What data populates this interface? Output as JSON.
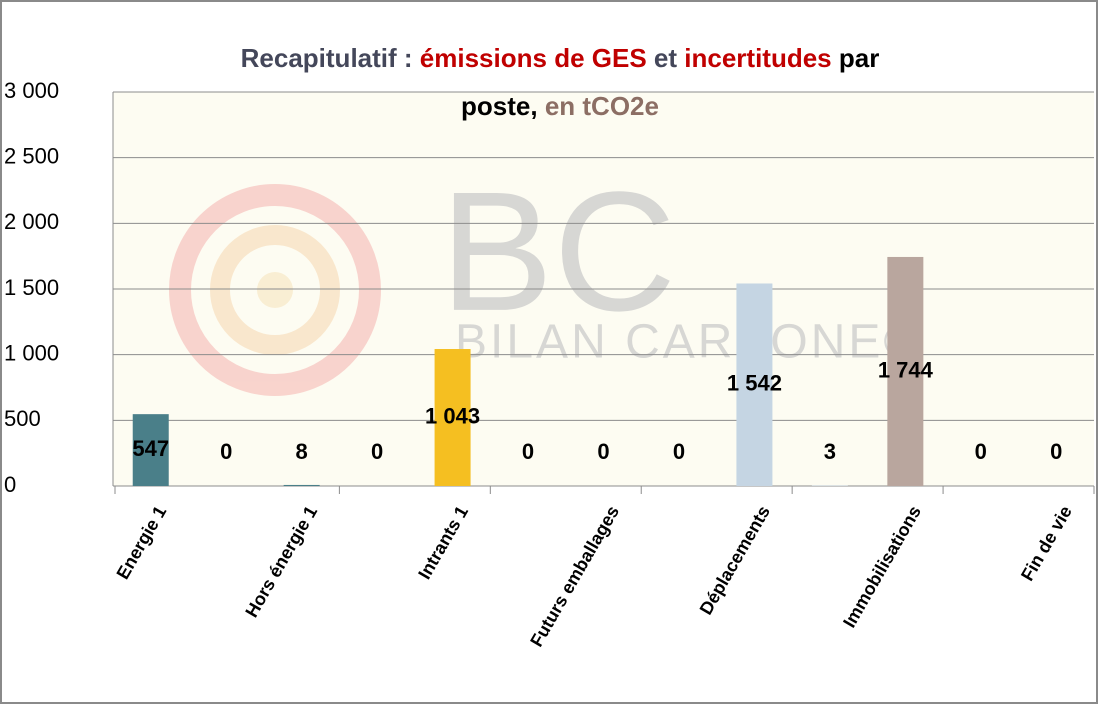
{
  "chart_data": {
    "type": "bar",
    "title": [
      {
        "text": "Recapitulatif :",
        "color": "#44475a"
      },
      {
        "text": "émissions de GES",
        "color": "#c00000"
      },
      {
        "text": "et",
        "color": "#44475a"
      },
      {
        "text": "incertitudes",
        "color": "#c00000"
      },
      {
        "text": "par",
        "color": "#000000"
      },
      {
        "text": "poste,",
        "color": "#000000"
      },
      {
        "text": "en tCO2e",
        "color": "#8c6e64"
      }
    ],
    "watermark": [
      "BC",
      "BILAN CARBONE®"
    ],
    "categories": [
      "Energie 1",
      null,
      "Hors énergie 1",
      null,
      "Intrants 1",
      null,
      "Futurs emballages",
      null,
      "Déplacements",
      null,
      "Immobilisations",
      null,
      "Fin de vie"
    ],
    "values": [
      547,
      0,
      8,
      0,
      1043,
      0,
      0,
      0,
      1542,
      3,
      1744,
      0,
      0
    ],
    "value_labels": [
      "547",
      "0",
      "8",
      "0",
      "1 043",
      "0",
      "0",
      "0",
      "1 542",
      "3",
      "1 744",
      "0",
      "0"
    ],
    "colors": [
      "#4a7f89",
      "#4a7f89",
      "#4a7f89",
      "#f5bf21",
      "#f5bf21",
      "#f5bf21",
      "#f5bf21",
      "#c5d5e3",
      "#c5d5e3",
      "#c5d5e3",
      "#b9a69e",
      "#b9a69e",
      "#b9a69e"
    ],
    "ylim": [
      0,
      3000
    ],
    "yticks": [
      0,
      500,
      {
        "value": 1000,
        "label": "1 000"
      },
      {
        "value": 1500,
        "label": "1 500"
      },
      {
        "value": 2000,
        "label": "2 000"
      },
      {
        "value": 2500,
        "label": "2 500"
      },
      {
        "value": 3000,
        "label": "3 000"
      }
    ],
    "grid": true
  }
}
